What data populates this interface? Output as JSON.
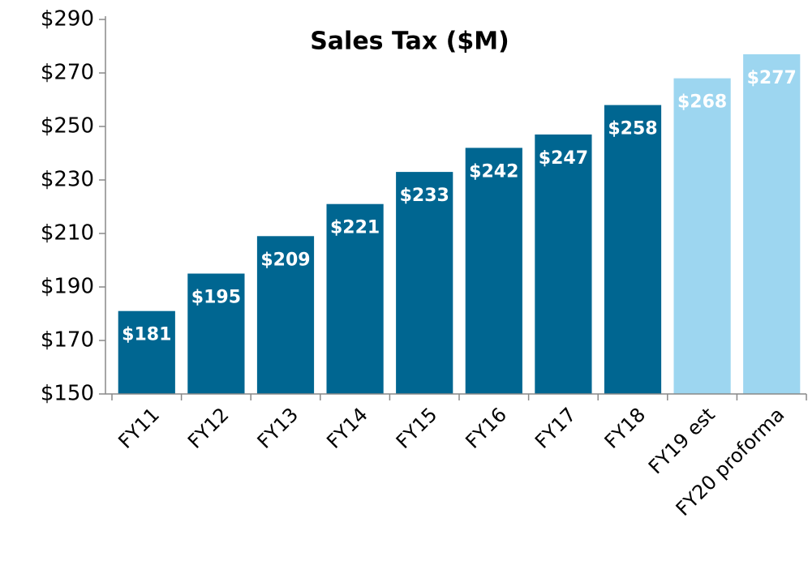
{
  "chart_data": {
    "type": "bar",
    "title": "Sales Tax ($M)",
    "categories": [
      "FY11",
      "FY12",
      "FY13",
      "FY14",
      "FY15",
      "FY16",
      "FY17",
      "FY18",
      "FY19 est",
      "FY20 proforma"
    ],
    "values": [
      181,
      195,
      209,
      221,
      233,
      242,
      247,
      258,
      268,
      277
    ],
    "value_labels": [
      "$181",
      "$195",
      "$209",
      "$221",
      "$233",
      "$242",
      "$247",
      "$258",
      "$268",
      "$277"
    ],
    "colors": [
      "#006691",
      "#006691",
      "#006691",
      "#006691",
      "#006691",
      "#006691",
      "#006691",
      "#006691",
      "#9dd6f0",
      "#9dd6f0"
    ],
    "ylim": [
      150,
      290
    ],
    "yticks": [
      {
        "value": 150,
        "label": "$150"
      },
      {
        "value": 170,
        "label": "$170"
      },
      {
        "value": 190,
        "label": "$190"
      },
      {
        "value": 210,
        "label": "$210"
      },
      {
        "value": 230,
        "label": "$230"
      },
      {
        "value": 250,
        "label": "$250"
      },
      {
        "value": 270,
        "label": "$270"
      },
      {
        "value": 290,
        "label": "$290"
      }
    ],
    "grid": false
  }
}
